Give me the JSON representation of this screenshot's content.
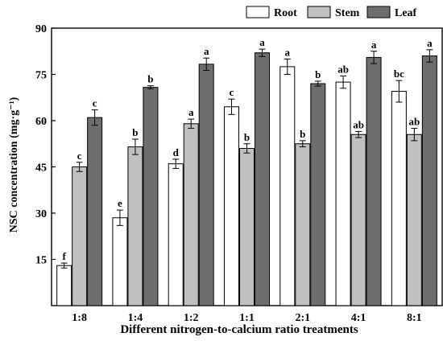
{
  "chart_data": {
    "type": "bar",
    "title": "",
    "ylabel": "NSC concentration (mg·g⁻¹)",
    "xlabel": "Different nitrogen-to-calcium ratio treatments",
    "ylim": [
      0,
      90
    ],
    "yticks": [
      15,
      30,
      45,
      60,
      75,
      90
    ],
    "categories": [
      "1:8",
      "1:4",
      "1:2",
      "1:1",
      "2:1",
      "4:1",
      "8:1"
    ],
    "legend_position": "top-right",
    "series": [
      {
        "name": "Root",
        "color": "#ffffff",
        "values": [
          13.0,
          28.5,
          46.0,
          64.5,
          77.5,
          72.5,
          69.5
        ],
        "errors": [
          0.8,
          2.5,
          1.5,
          2.5,
          2.5,
          2.0,
          3.5
        ],
        "labels": [
          "f",
          "e",
          "d",
          "c",
          "a",
          "ab",
          "bc"
        ]
      },
      {
        "name": "Stem",
        "color": "#c0c0c0",
        "values": [
          45.0,
          51.5,
          59.0,
          51.0,
          52.5,
          55.5,
          55.5
        ],
        "errors": [
          1.5,
          2.5,
          1.5,
          1.5,
          1.0,
          1.0,
          2.0
        ],
        "labels": [
          "c",
          "b",
          "a",
          "b",
          "b",
          "ab",
          "ab"
        ]
      },
      {
        "name": "Leaf",
        "color": "#6e6e6e",
        "values": [
          61.0,
          70.8,
          78.3,
          82.0,
          72.0,
          80.5,
          81.0
        ],
        "errors": [
          2.5,
          0.5,
          2.0,
          1.2,
          0.8,
          2.0,
          2.0
        ],
        "labels": [
          "c",
          "b",
          "a",
          "a",
          "b",
          "a",
          "a"
        ]
      }
    ]
  }
}
